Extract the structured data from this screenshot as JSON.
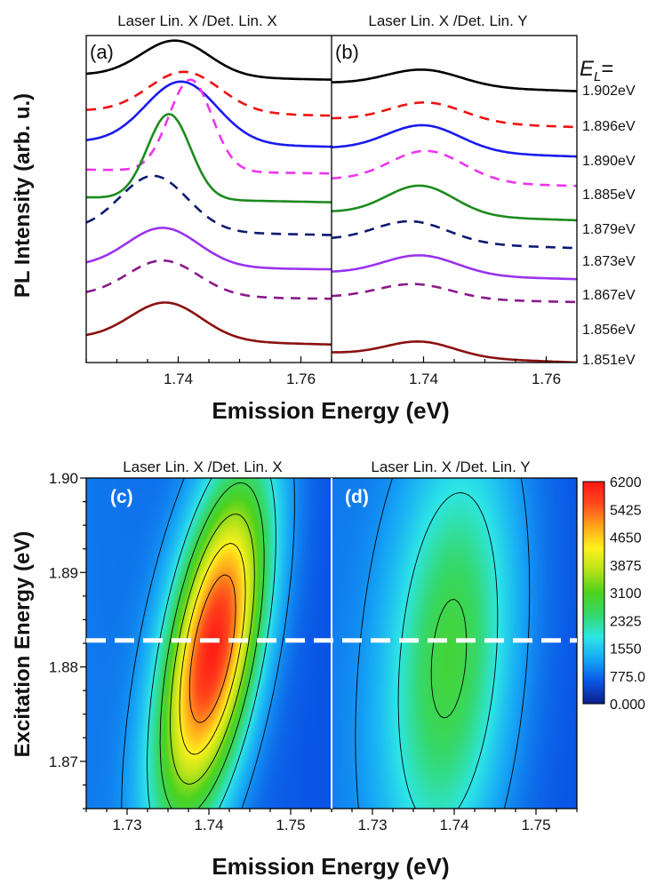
{
  "colors": {
    "colormap": [
      "#0a1e86",
      "#0a55e6",
      "#16a6f6",
      "#2de6e6",
      "#35d86a",
      "#4cd21e",
      "#b6e21a",
      "#fff21c",
      "#ffa41c",
      "#ff4a1c",
      "#ff1414"
    ],
    "divider_top": "#000000",
    "divider_bottom": "#ffffff",
    "dashed_line": "#ffffff"
  },
  "chart_data": [
    {
      "id": "a",
      "type": "line",
      "panel_label": "(a)",
      "title": "Laser Lin. X /Det. Lin. X",
      "ylabel": "PL Intensity (arb. u.)",
      "xlabel": "Emission Energy (eV)",
      "xlim": [
        1.725,
        1.765
      ],
      "ylim": [
        0,
        1
      ],
      "x_ticks": [
        1.74,
        1.76
      ],
      "x_tick_labels": [
        "1.74",
        "1.76"
      ],
      "series": [
        {
          "name": "1.902eV",
          "color": "#000000",
          "dashed": false,
          "offset": 0.88,
          "amp": 0.11,
          "center": 1.7395,
          "width": 0.0055,
          "tail": -0.015
        },
        {
          "name": "1.896eV",
          "color": "#ee1111",
          "dashed": true,
          "offset": 0.77,
          "amp": 0.125,
          "center": 1.741,
          "width": 0.0058,
          "tail": -0.015
        },
        {
          "name": "1.890eV",
          "color": "#1a1aee",
          "dashed": false,
          "offset": 0.675,
          "amp": 0.19,
          "center": 1.7405,
          "width": 0.0058,
          "tail": -0.015
        },
        {
          "name": "1.885eV",
          "color": "#ee33ee",
          "dashed": true,
          "offset": 0.59,
          "amp": 0.28,
          "center": 1.742,
          "width": 0.0035,
          "tail": -0.012
        },
        {
          "name": "1.879eV",
          "color": "#1e8a1e",
          "dashed": false,
          "offset": 0.505,
          "amp": 0.26,
          "center": 1.7385,
          "width": 0.0035,
          "tail": -0.015
        },
        {
          "name": "1.873eV",
          "color": "#0d1a70",
          "dashed": true,
          "offset": 0.405,
          "amp": 0.17,
          "center": 1.736,
          "width": 0.0055,
          "tail": -0.015
        },
        {
          "name": "1.867eV",
          "color": "#9933ee",
          "dashed": false,
          "offset": 0.295,
          "amp": 0.12,
          "center": 1.7375,
          "width": 0.0058,
          "tail": -0.01
        },
        {
          "name": "1.856eV",
          "color": "#8a1a8a",
          "dashed": true,
          "offset": 0.205,
          "amp": 0.11,
          "center": 1.7375,
          "width": 0.0058,
          "tail": -0.01
        },
        {
          "name": "1.851eV",
          "color": "#8b1010",
          "dashed": false,
          "offset": 0.075,
          "amp": 0.115,
          "center": 1.738,
          "width": 0.0058,
          "tail": -0.02
        }
      ]
    },
    {
      "id": "b",
      "type": "line",
      "panel_label": "(b)",
      "title": "Laser Lin. X /Det. Lin. Y",
      "xlim": [
        1.725,
        1.765
      ],
      "ylim": [
        0,
        1
      ],
      "x_ticks": [
        1.74,
        1.76
      ],
      "x_tick_labels": [
        "1.74",
        "1.76"
      ],
      "legend_header": "E_L=",
      "series": [
        {
          "name": "1.902eV",
          "color": "#000000",
          "dashed": false,
          "offset": 0.855,
          "amp": 0.05,
          "center": 1.74,
          "width": 0.006,
          "tail": -0.025
        },
        {
          "name": "1.896eV",
          "color": "#ee1111",
          "dashed": true,
          "offset": 0.745,
          "amp": 0.06,
          "center": 1.7405,
          "width": 0.006,
          "tail": -0.025
        },
        {
          "name": "1.890eV",
          "color": "#1a1aee",
          "dashed": false,
          "offset": 0.655,
          "amp": 0.08,
          "center": 1.74,
          "width": 0.006,
          "tail": -0.025
        },
        {
          "name": "1.885eV",
          "color": "#ee33ee",
          "dashed": true,
          "offset": 0.56,
          "amp": 0.095,
          "center": 1.7405,
          "width": 0.006,
          "tail": -0.02
        },
        {
          "name": "1.879eV",
          "color": "#1e8a1e",
          "dashed": false,
          "offset": 0.46,
          "amp": 0.09,
          "center": 1.7395,
          "width": 0.0055,
          "tail": -0.025
        },
        {
          "name": "1.873eV",
          "color": "#0d1a70",
          "dashed": true,
          "offset": 0.375,
          "amp": 0.065,
          "center": 1.738,
          "width": 0.006,
          "tail": -0.025
        },
        {
          "name": "1.867eV",
          "color": "#9933ee",
          "dashed": false,
          "offset": 0.275,
          "amp": 0.06,
          "center": 1.7395,
          "width": 0.006,
          "tail": -0.02
        },
        {
          "name": "1.856eV",
          "color": "#8a1a8a",
          "dashed": true,
          "offset": 0.2,
          "amp": 0.045,
          "center": 1.7385,
          "width": 0.006,
          "tail": -0.015
        },
        {
          "name": "1.851eV",
          "color": "#8b1010",
          "dashed": false,
          "offset": 0.03,
          "amp": 0.045,
          "center": 1.7395,
          "width": 0.0055,
          "tail": -0.03
        }
      ]
    },
    {
      "id": "c",
      "type": "heatmap",
      "panel_label": "(c)",
      "title": "Laser Lin. X /Det. Lin. X",
      "xlabel": "Emission Energy (eV)",
      "ylabel": "Excitation Energy (eV)",
      "xlim": [
        1.725,
        1.755
      ],
      "ylim": [
        1.865,
        1.9
      ],
      "x_ticks": [
        1.73,
        1.74,
        1.75
      ],
      "x_tick_labels": [
        "1.73",
        "1.74",
        "1.75"
      ],
      "y_ticks": [
        1.87,
        1.88,
        1.89,
        1.9
      ],
      "y_tick_labels": [
        "1.87",
        "1.88",
        "1.89",
        "1.90"
      ],
      "dashed_line_y": 1.8828,
      "peaks": [
        {
          "x": 1.7405,
          "y": 1.882,
          "amp": 6200,
          "sx": 0.0045,
          "sy": 0.0125,
          "rho": 0.55
        }
      ],
      "background": 900,
      "max_value": 6200
    },
    {
      "id": "d",
      "type": "heatmap",
      "panel_label": "(d)",
      "title": "Laser Lin. X /Det. Lin. Y",
      "xlim": [
        1.725,
        1.755
      ],
      "ylim": [
        1.865,
        1.9
      ],
      "x_ticks": [
        1.73,
        1.74,
        1.75
      ],
      "x_tick_labels": [
        "1.73",
        "1.74",
        "1.75"
      ],
      "peaks": [
        {
          "x": 1.7395,
          "y": 1.881,
          "amp": 3000,
          "sx": 0.0055,
          "sy": 0.016,
          "rho": 0.25
        }
      ],
      "background": 900,
      "max_value": 6200
    },
    {
      "id": "colorbar",
      "type": "colorbar",
      "tick_labels": [
        "0.000",
        "775.0",
        "1550",
        "2325",
        "3100",
        "3875",
        "4650",
        "5425",
        "6200"
      ],
      "range": [
        0,
        6200
      ]
    }
  ]
}
